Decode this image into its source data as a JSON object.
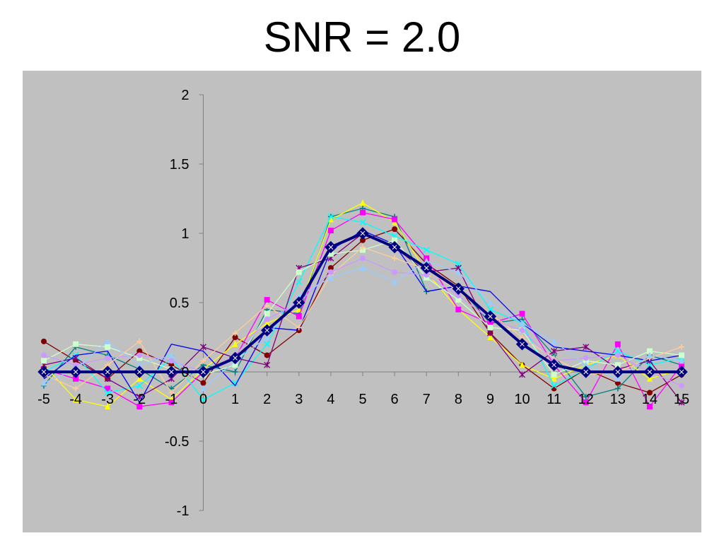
{
  "title": "SNR = 2.0",
  "chart_data": {
    "type": "line",
    "title": "SNR = 2.0",
    "xlabel": "",
    "ylabel": "",
    "x": [
      -5,
      -4,
      -3,
      -2,
      -1,
      0,
      1,
      2,
      3,
      4,
      5,
      6,
      7,
      8,
      9,
      10,
      11,
      12,
      13,
      14,
      15
    ],
    "x_tick_labels": [
      "-5",
      "-4",
      "-3",
      "-2",
      "-1",
      "0",
      "1",
      "2",
      "3",
      "4",
      "5",
      "6",
      "7",
      "8",
      "9",
      "10",
      "11",
      "12",
      "13",
      "14",
      "15"
    ],
    "ylim": [
      -1,
      2
    ],
    "y_ticks": [
      -1,
      -0.5,
      0,
      0.5,
      1,
      1.5,
      2
    ],
    "y_tick_labels": [
      "-1",
      "-0.5",
      "0",
      "0.5",
      "1",
      "1.5",
      "2"
    ],
    "grid": false,
    "legend": "none",
    "plot_background": "#c0c0c0",
    "series": [
      {
        "values": [
          0,
          0,
          0,
          0,
          0,
          0,
          0.1,
          0.3,
          0.5,
          0.9,
          1.0,
          0.9,
          0.75,
          0.6,
          0.4,
          0.2,
          0.05,
          0,
          0,
          0,
          0
        ],
        "color": "#000080",
        "marker": "diamond",
        "bold": true
      },
      {
        "values": [
          0.22,
          0.08,
          -0.05,
          0.15,
          0.05,
          -0.08,
          0.25,
          0.12,
          0.3,
          0.75,
          0.95,
          1.03,
          0.78,
          0.62,
          0.28,
          0.05,
          -0.12,
          0.02,
          -0.08,
          -0.15,
          -0.02
        ],
        "color": "#800000",
        "marker": "circle"
      },
      {
        "values": [
          -0.1,
          0.18,
          0.12,
          0.02,
          -0.12,
          0.05,
          0.0,
          0.45,
          0.42,
          1.12,
          1.18,
          1.12,
          0.58,
          0.62,
          0.35,
          0.38,
          0.12,
          -0.18,
          -0.12,
          0.12,
          0.05
        ],
        "color": "#008080",
        "marker": "plus"
      },
      {
        "values": [
          0.05,
          -0.2,
          -0.25,
          -0.05,
          -0.2,
          0.02,
          0.2,
          0.35,
          0.45,
          1.1,
          1.22,
          1.08,
          0.72,
          0.45,
          0.25,
          0.05,
          -0.05,
          0.05,
          0.12,
          -0.05,
          0.02
        ],
        "color": "#ffff00",
        "marker": "triangle"
      },
      {
        "values": [
          0.02,
          -0.05,
          -0.12,
          -0.25,
          -0.22,
          0.0,
          0.1,
          0.52,
          0.4,
          1.02,
          1.15,
          1.1,
          0.82,
          0.45,
          0.35,
          0.42,
          0.05,
          -0.22,
          0.2,
          -0.25,
          0.05
        ],
        "color": "#ff00ff",
        "marker": "square"
      },
      {
        "values": [
          0.0,
          0.12,
          -0.15,
          -0.1,
          0.1,
          -0.2,
          -0.08,
          0.2,
          0.65,
          1.12,
          1.08,
          0.98,
          0.88,
          0.78,
          0.45,
          0.35,
          -0.1,
          0.02,
          0.15,
          0.05,
          0.1
        ],
        "color": "#00ffff",
        "marker": "x"
      },
      {
        "values": [
          0.05,
          0.1,
          -0.05,
          -0.18,
          -0.05,
          0.18,
          0.1,
          0.05,
          0.75,
          0.82,
          1.0,
          0.9,
          0.72,
          0.75,
          0.28,
          -0.02,
          0.15,
          0.18,
          0.02,
          0.08,
          -0.22
        ],
        "color": "#800080",
        "marker": "star"
      },
      {
        "values": [
          -0.05,
          0.12,
          0.15,
          -0.22,
          0.2,
          0.15,
          -0.1,
          0.32,
          0.3,
          0.88,
          1.02,
          0.92,
          0.58,
          0.62,
          0.58,
          0.35,
          0.18,
          0.15,
          0.12,
          0.08,
          0.12
        ],
        "color": "#0000ff",
        "marker": "none"
      },
      {
        "values": [
          0.08,
          0.2,
          0.18,
          0.1,
          0.02,
          -0.02,
          0.05,
          0.42,
          0.72,
          0.85,
          0.88,
          0.95,
          0.68,
          0.52,
          0.32,
          0.3,
          -0.02,
          0.08,
          0.05,
          0.15,
          0.12
        ],
        "color": "#ccffcc",
        "marker": "square"
      },
      {
        "values": [
          -0.02,
          -0.12,
          0.05,
          0.22,
          -0.15,
          0.08,
          0.28,
          0.48,
          0.32,
          0.7,
          0.9,
          0.82,
          0.74,
          0.58,
          0.42,
          0.25,
          0.1,
          -0.02,
          0.0,
          0.1,
          0.18
        ],
        "color": "#ffcc99",
        "marker": "plus"
      },
      {
        "values": [
          0.12,
          0.05,
          0.1,
          0.12,
          0.08,
          0.0,
          0.12,
          0.38,
          0.5,
          0.72,
          0.82,
          0.72,
          0.7,
          0.55,
          0.38,
          0.3,
          0.08,
          0.1,
          0.12,
          0.0,
          -0.1
        ],
        "color": "#cc99ff",
        "marker": "circle"
      },
      {
        "values": [
          -0.08,
          0.02,
          0.22,
          0.05,
          0.12,
          -0.12,
          0.08,
          0.25,
          0.55,
          0.68,
          0.75,
          0.65,
          0.8,
          0.72,
          0.5,
          0.35,
          0.22,
          0.05,
          -0.05,
          0.12,
          0.08
        ],
        "color": "#99ccff",
        "marker": "triangle"
      }
    ]
  }
}
